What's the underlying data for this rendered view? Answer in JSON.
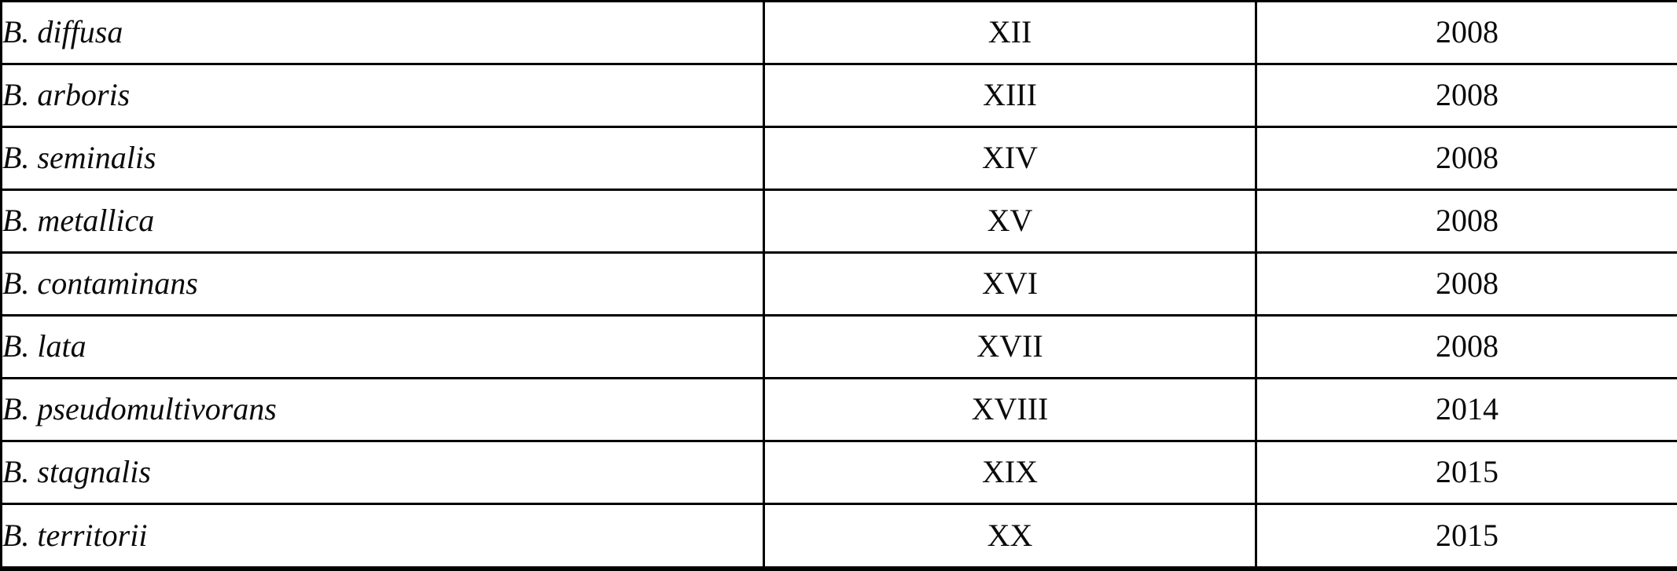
{
  "table": {
    "columns": [
      {
        "key": "species",
        "align": "left",
        "style": "italic"
      },
      {
        "key": "group",
        "align": "center",
        "style": "roman-numeral"
      },
      {
        "key": "year",
        "align": "center",
        "style": "normal"
      }
    ],
    "rows": [
      {
        "species": "B. diffusa",
        "group": "XII",
        "year": "2008"
      },
      {
        "species": "B. arboris",
        "group": "XIII",
        "year": "2008"
      },
      {
        "species": "B. seminalis",
        "group": "XIV",
        "year": "2008"
      },
      {
        "species": "B. metallica",
        "group": "XV",
        "year": "2008"
      },
      {
        "species": "B. contaminans",
        "group": "XVI",
        "year": "2008"
      },
      {
        "species": "B. lata",
        "group": "XVII",
        "year": "2008"
      },
      {
        "species": "B. pseudomultivorans",
        "group": "XVIII",
        "year": "2014"
      },
      {
        "species": "B. stagnalis",
        "group": "XIX",
        "year": "2015"
      },
      {
        "species": "B. territorii",
        "group": "XX",
        "year": "2015"
      }
    ]
  },
  "colors": {
    "text": "#0b0b0b",
    "border": "#000000",
    "background": "#ffffff"
  }
}
